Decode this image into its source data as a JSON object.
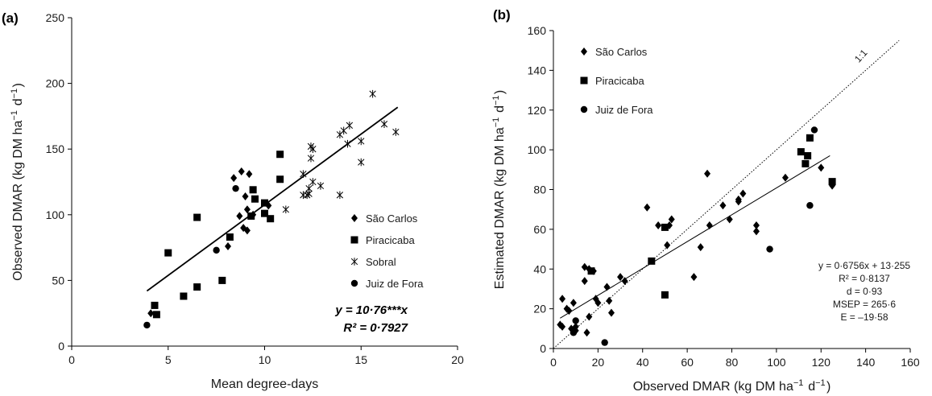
{
  "chart_data": [
    {
      "panel": "(a)",
      "type": "scatter",
      "xlabel": "Mean degree-days",
      "ylabel": "Observed DMAR (kg DM  ha⁻¹ d⁻¹)",
      "xlim": [
        0,
        20
      ],
      "ylim": [
        0,
        250
      ],
      "xticks": [
        0,
        5,
        10,
        15,
        20
      ],
      "yticks": [
        0,
        50,
        100,
        150,
        200,
        250
      ],
      "legend_position": "right",
      "series": [
        {
          "name": "São Carlos",
          "marker": "diamond",
          "points": [
            [
              4.1,
              25
            ],
            [
              8.1,
              76
            ],
            [
              8.4,
              128
            ],
            [
              8.7,
              99
            ],
            [
              8.8,
              133
            ],
            [
              8.9,
              90
            ],
            [
              9.0,
              114
            ],
            [
              9.1,
              88
            ],
            [
              9.1,
              104
            ],
            [
              9.2,
              131
            ],
            [
              9.4,
              100
            ],
            [
              10.2,
              107
            ]
          ]
        },
        {
          "name": "Piracicaba",
          "marker": "square",
          "points": [
            [
              4.3,
              31
            ],
            [
              4.4,
              24
            ],
            [
              5.0,
              71
            ],
            [
              5.8,
              38
            ],
            [
              6.5,
              98
            ],
            [
              6.5,
              45
            ],
            [
              7.8,
              50
            ],
            [
              8.2,
              83
            ],
            [
              9.3,
              99
            ],
            [
              9.4,
              119
            ],
            [
              9.5,
              112
            ],
            [
              10.0,
              101
            ],
            [
              10.0,
              109
            ],
            [
              10.3,
              97
            ],
            [
              10.8,
              146
            ],
            [
              10.8,
              127
            ]
          ]
        },
        {
          "name": "Sobral",
          "marker": "x",
          "points": [
            [
              11.1,
              104
            ],
            [
              12.0,
              115
            ],
            [
              12.0,
              131
            ],
            [
              12.2,
              115
            ],
            [
              12.3,
              116
            ],
            [
              12.3,
              120
            ],
            [
              12.4,
              143
            ],
            [
              12.4,
              152
            ],
            [
              12.5,
              150
            ],
            [
              12.5,
              125
            ],
            [
              12.9,
              122
            ],
            [
              13.9,
              161
            ],
            [
              13.9,
              115
            ],
            [
              14.1,
              164
            ],
            [
              14.3,
              154
            ],
            [
              14.4,
              168
            ],
            [
              15.0,
              156
            ],
            [
              15.0,
              140
            ],
            [
              15.6,
              192
            ],
            [
              16.2,
              169
            ],
            [
              16.8,
              163
            ]
          ]
        },
        {
          "name": "Juiz de Fora",
          "marker": "circle",
          "points": [
            [
              3.9,
              16
            ],
            [
              7.5,
              73
            ],
            [
              8.5,
              120
            ]
          ]
        }
      ],
      "fit_line": {
        "slope": 10.76,
        "intercept": 0,
        "x_range": [
          3.9,
          16.9
        ]
      },
      "annotation": {
        "equation": "y = 10·76***x",
        "r2": "R² = 0·7927"
      }
    },
    {
      "panel": "(b)",
      "type": "scatter",
      "xlabel": "Observed DMAR (kg DM  ha⁻¹ d⁻¹)",
      "ylabel": "Estimated DMAR (kg DM  ha⁻¹ d⁻¹)",
      "xlim": [
        0,
        160
      ],
      "ylim": [
        0,
        160
      ],
      "xticks": [
        0,
        20,
        40,
        60,
        80,
        100,
        120,
        140,
        160
      ],
      "yticks": [
        0,
        20,
        40,
        60,
        80,
        100,
        120,
        140,
        160
      ],
      "legend_position": "top-left",
      "series": [
        {
          "name": "São Carlos",
          "marker": "diamond",
          "points": [
            [
              3,
              12
            ],
            [
              4,
              25
            ],
            [
              4,
              11
            ],
            [
              6,
              20
            ],
            [
              7,
              19
            ],
            [
              8,
              10
            ],
            [
              9,
              23
            ],
            [
              10,
              11
            ],
            [
              10,
              9
            ],
            [
              14,
              34
            ],
            [
              14,
              41
            ],
            [
              15,
              8
            ],
            [
              16,
              40
            ],
            [
              16,
              16
            ],
            [
              18,
              39
            ],
            [
              19,
              25
            ],
            [
              20,
              23
            ],
            [
              24,
              31
            ],
            [
              25,
              24
            ],
            [
              26,
              18
            ],
            [
              30,
              36
            ],
            [
              32,
              34
            ],
            [
              42,
              71
            ],
            [
              47,
              62
            ],
            [
              51,
              52
            ],
            [
              52,
              62
            ],
            [
              53,
              65
            ],
            [
              63,
              36
            ],
            [
              66,
              51
            ],
            [
              69,
              88
            ],
            [
              70,
              62
            ],
            [
              76,
              72
            ],
            [
              79,
              65
            ],
            [
              83,
              74
            ],
            [
              83,
              75
            ],
            [
              85,
              78
            ],
            [
              91,
              62
            ],
            [
              91,
              59
            ],
            [
              104,
              86
            ],
            [
              120,
              91
            ],
            [
              125,
              82
            ]
          ]
        },
        {
          "name": "Piracicaba",
          "marker": "square",
          "points": [
            [
              17,
              39
            ],
            [
              44,
              44
            ],
            [
              50,
              27
            ],
            [
              50,
              61
            ],
            [
              111,
              99
            ],
            [
              113,
              93
            ],
            [
              114,
              97
            ],
            [
              115,
              106
            ],
            [
              125,
              84
            ]
          ]
        },
        {
          "name": "Juiz de Fora",
          "marker": "circle",
          "points": [
            [
              9,
              8
            ],
            [
              10,
              14
            ],
            [
              23,
              3
            ],
            [
              97,
              50
            ],
            [
              115,
              72
            ],
            [
              117,
              110
            ]
          ]
        }
      ],
      "fit_line": {
        "slope": 0.6756,
        "intercept": 13.255,
        "x_range": [
          3,
          124
        ]
      },
      "ref_line": {
        "label": "1:1",
        "x_range": [
          0,
          155
        ]
      },
      "annotation": [
        "y = 0·6756x + 13·255",
        "R² = 0·8137",
        "d = 0·93",
        "MSEP = 265·6",
        "E = –19·58"
      ]
    }
  ]
}
